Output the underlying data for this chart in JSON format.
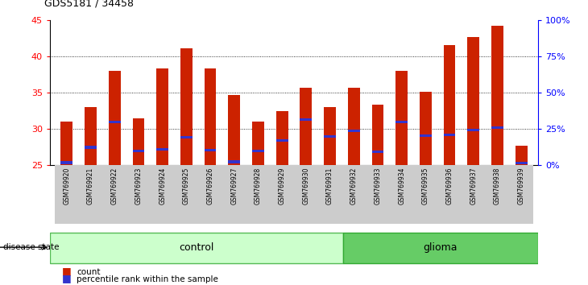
{
  "title": "GDS5181 / 34458",
  "samples": [
    "GSM769920",
    "GSM769921",
    "GSM769922",
    "GSM769923",
    "GSM769924",
    "GSM769925",
    "GSM769926",
    "GSM769927",
    "GSM769928",
    "GSM769929",
    "GSM769930",
    "GSM769931",
    "GSM769932",
    "GSM769933",
    "GSM769934",
    "GSM769935",
    "GSM769936",
    "GSM769937",
    "GSM769938",
    "GSM769939"
  ],
  "counts": [
    31.0,
    33.0,
    38.0,
    31.5,
    38.3,
    41.1,
    38.3,
    34.7,
    31.0,
    32.5,
    35.7,
    33.0,
    35.7,
    33.3,
    38.0,
    35.1,
    41.5,
    42.7,
    44.2,
    27.7
  ],
  "percentile_positions": [
    25.2,
    27.3,
    30.8,
    26.8,
    27.0,
    28.7,
    26.9,
    25.3,
    26.8,
    28.2,
    31.1,
    28.8,
    29.6,
    26.7,
    30.8,
    28.9,
    29.0,
    29.7,
    30.0,
    25.1
  ],
  "percentile_heights": [
    0.35,
    0.35,
    0.35,
    0.35,
    0.35,
    0.35,
    0.35,
    0.35,
    0.35,
    0.35,
    0.35,
    0.35,
    0.35,
    0.35,
    0.35,
    0.35,
    0.35,
    0.35,
    0.35,
    0.35
  ],
  "ymin": 25,
  "ymax": 45,
  "bar_bottom": 25,
  "bar_color": "#cc2200",
  "blue_color": "#3333cc",
  "control_count": 12,
  "glioma_count": 8,
  "control_color": "#ccffcc",
  "glioma_color": "#66cc66",
  "control_label": "control",
  "glioma_label": "glioma",
  "disease_label": "disease state",
  "legend_count": "count",
  "legend_pct": "percentile rank within the sample",
  "right_yticks": [
    0,
    25,
    50,
    75,
    100
  ],
  "right_ylabels": [
    "0%",
    "25%",
    "50%",
    "75%",
    "100%"
  ],
  "gray_bg": "#cccccc"
}
